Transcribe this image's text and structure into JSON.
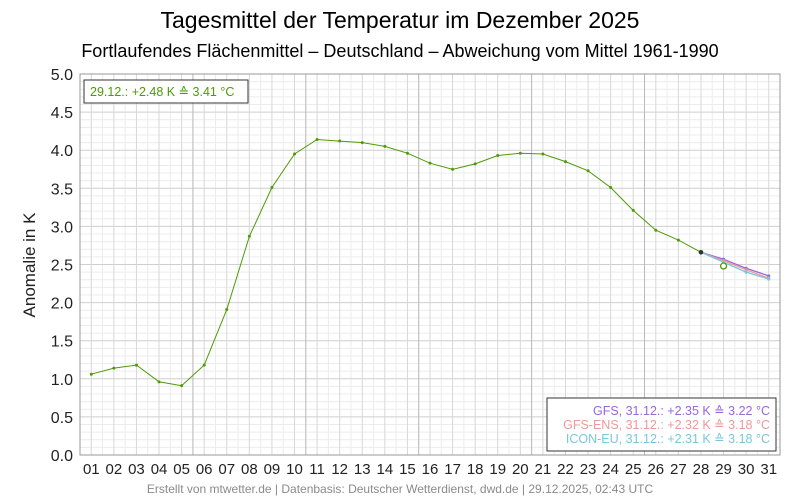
{
  "chart_data": {
    "type": "line",
    "title": "Tagesmittel der Temperatur im Dezember 2025",
    "subtitle": "Fortlaufendes Flächenmittel – Deutschland – Abweichung vom Mittel 1961-1990",
    "ylabel": "Anomalie in K",
    "ylim": [
      0,
      5
    ],
    "yticks": [
      "0.0",
      "0.5",
      "1.0",
      "1.5",
      "2.0",
      "2.5",
      "3.0",
      "3.5",
      "4.0",
      "4.5",
      "5.0"
    ],
    "categories": [
      "01",
      "02",
      "03",
      "04",
      "05",
      "06",
      "07",
      "08",
      "09",
      "10",
      "11",
      "12",
      "13",
      "14",
      "15",
      "16",
      "17",
      "18",
      "19",
      "20",
      "21",
      "22",
      "23",
      "24",
      "25",
      "26",
      "27",
      "28",
      "29",
      "30",
      "31"
    ],
    "grid": true,
    "observed": {
      "color": "#4e9a06",
      "x": [
        1,
        2,
        3,
        4,
        5,
        6,
        7,
        8,
        9,
        10,
        11,
        12,
        13,
        14,
        15,
        16,
        17,
        18,
        19,
        20,
        21,
        22,
        23,
        24,
        25,
        26,
        27,
        28
      ],
      "values": [
        1.06,
        1.14,
        1.18,
        0.96,
        0.91,
        1.18,
        1.91,
        2.87,
        3.51,
        3.95,
        4.14,
        4.12,
        4.1,
        4.05,
        3.96,
        3.83,
        3.75,
        3.82,
        3.93,
        3.96,
        3.95,
        3.85,
        3.73,
        3.51,
        3.21,
        2.95,
        2.82,
        2.66
      ]
    },
    "current_point": {
      "x": 29,
      "value": 2.48,
      "color": "#4e9a06"
    },
    "forecasts": [
      {
        "name": "GFS",
        "color": "#9966dd",
        "x": [
          28,
          29,
          30,
          31
        ],
        "values": [
          2.66,
          2.57,
          2.45,
          2.35
        ]
      },
      {
        "name": "GFS-ENS",
        "color": "#ee9999",
        "x": [
          28,
          29,
          30,
          31
        ],
        "values": [
          2.66,
          2.55,
          2.43,
          2.32
        ]
      },
      {
        "name": "ICON-EU",
        "color": "#77c8dd",
        "x": [
          28,
          29,
          30,
          31
        ],
        "values": [
          2.66,
          2.53,
          2.4,
          2.31
        ]
      }
    ],
    "info_box": {
      "text": "29.12.: +2.48 K ≙ 3.41 °C",
      "color": "#4e9a06"
    },
    "legend": {
      "placement": "bottom-right",
      "entries": [
        {
          "text": "GFS, 31.12.: +2.35 K ≙ 3.22 °C",
          "color": "#9966dd"
        },
        {
          "text": "GFS-ENS, 31.12.: +2.32 K ≙ 3.18 °C",
          "color": "#ee9999"
        },
        {
          "text": "ICON-EU, 31.12.: +2.31 K ≙ 3.18 °C",
          "color": "#77c8dd"
        }
      ]
    },
    "footer": "Erstellt von mtwetter.de | Datenbasis: Deutscher Wetterdienst, dwd.de | 29.12.2025, 02:43 UTC"
  }
}
